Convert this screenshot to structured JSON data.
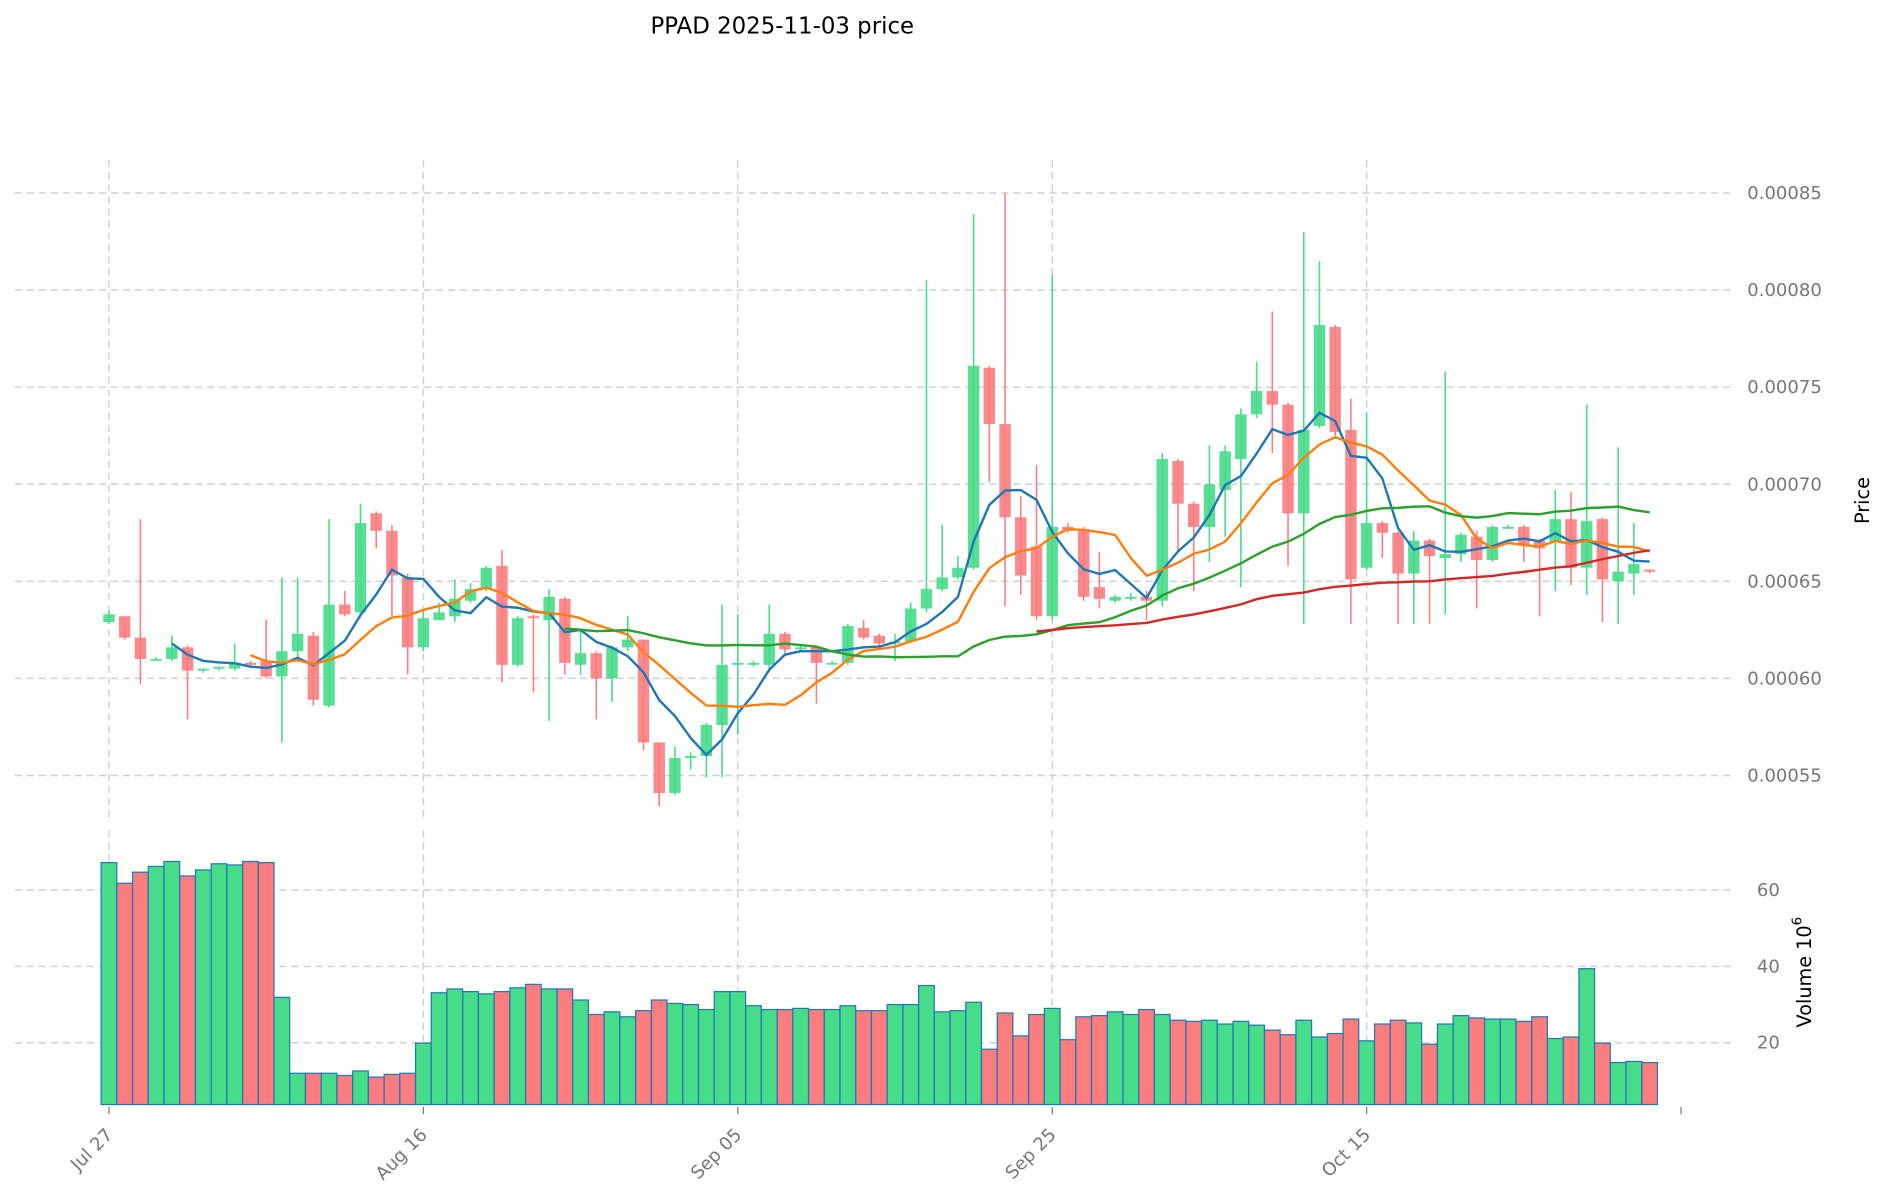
{
  "chart_data": {
    "type": "candlestick",
    "title": "PPAD  2025-11-03  price",
    "price_ylabel": "Price",
    "volume_ylabel": "Volume",
    "volume_exponent": "6",
    "start_date": "2025-07-27",
    "x_tick_labels": [
      {
        "index": 0,
        "label": "Jul 27"
      },
      {
        "index": 20,
        "label": "Aug 16"
      },
      {
        "index": 40,
        "label": "Sep 05"
      },
      {
        "index": 60,
        "label": "Sep 25"
      },
      {
        "index": 80,
        "label": "Oct 15"
      }
    ],
    "price_ticks": [
      "0.00055",
      "0.00060",
      "0.00065",
      "0.00070",
      "0.00075",
      "0.00080",
      "0.00085"
    ],
    "volume_ticks": [
      "20",
      "40",
      "60"
    ],
    "price_ylim": [
      0.000528,
      0.000867
    ],
    "volume_ylim": [
      3.8,
      75.7
    ],
    "xlim": [
      -6,
      100
    ],
    "grid": true,
    "ma_windows": [
      5,
      10,
      30,
      60
    ],
    "colors": {
      "up": "#47dc89",
      "down": "#fb7d80",
      "volume_edge": "#1f77b4",
      "ma": [
        "#1f77b4",
        "#ff7f0e",
        "#2ca02c",
        "#d62728"
      ],
      "grid": "#d0d0d0"
    },
    "ohlc_1e6": [
      [
        629,
        635,
        628,
        633
      ],
      [
        632,
        632,
        620,
        621
      ],
      [
        621,
        682,
        597,
        610
      ],
      [
        610,
        611,
        609,
        610
      ],
      [
        610,
        622,
        609,
        616
      ],
      [
        616,
        617,
        579,
        604
      ],
      [
        604,
        605,
        603,
        605
      ],
      [
        605,
        606,
        604,
        606
      ],
      [
        605,
        618,
        604,
        608
      ],
      [
        608,
        609,
        606,
        607
      ],
      [
        609,
        630,
        600,
        601
      ],
      [
        601,
        652,
        567,
        614
      ],
      [
        614,
        652,
        611,
        623
      ],
      [
        622,
        624,
        586,
        589
      ],
      [
        586,
        682,
        585,
        638
      ],
      [
        638,
        645,
        632,
        633
      ],
      [
        634,
        690,
        632,
        680
      ],
      [
        685,
        686,
        667,
        676
      ],
      [
        676,
        679,
        632,
        653
      ],
      [
        652,
        654,
        602,
        616
      ],
      [
        616,
        636,
        614,
        631
      ],
      [
        630,
        639,
        630,
        634
      ],
      [
        632,
        651,
        629,
        641
      ],
      [
        640,
        649,
        639,
        646
      ],
      [
        646,
        658,
        645,
        657
      ],
      [
        658,
        666,
        598,
        607
      ],
      [
        607,
        632,
        606,
        631
      ],
      [
        632,
        633,
        593,
        631
      ],
      [
        630,
        646,
        578,
        642
      ],
      [
        641,
        642,
        602,
        608
      ],
      [
        607,
        625,
        602,
        613
      ],
      [
        613,
        614,
        579,
        600
      ],
      [
        600,
        617,
        588,
        616
      ],
      [
        616,
        632,
        614,
        620
      ],
      [
        620,
        620,
        563,
        567
      ],
      [
        567,
        567,
        534,
        541
      ],
      [
        541,
        565,
        540,
        559
      ],
      [
        559,
        562,
        553,
        560
      ],
      [
        560,
        577,
        549,
        576
      ],
      [
        576,
        638,
        549,
        607
      ],
      [
        607,
        633,
        571,
        608
      ],
      [
        607,
        609,
        606,
        608
      ],
      [
        607,
        638,
        605,
        623
      ],
      [
        623,
        624,
        613,
        615
      ],
      [
        615,
        617,
        614,
        616
      ],
      [
        616,
        617,
        587,
        608
      ],
      [
        608,
        609,
        607,
        608
      ],
      [
        608,
        628,
        607,
        627
      ],
      [
        626,
        630,
        620,
        621
      ],
      [
        622,
        623,
        616,
        618
      ],
      [
        618,
        623,
        609,
        619
      ],
      [
        619,
        639,
        618,
        636
      ],
      [
        636,
        805,
        634,
        646
      ],
      [
        646,
        679,
        645,
        652
      ],
      [
        652,
        663,
        651,
        657
      ],
      [
        657,
        839,
        656,
        761
      ],
      [
        760,
        761,
        701,
        731
      ],
      [
        731,
        850,
        637,
        683
      ],
      [
        683,
        694,
        643,
        653
      ],
      [
        668,
        710,
        630,
        632
      ],
      [
        632,
        808,
        630,
        678
      ],
      [
        678,
        680,
        675,
        676
      ],
      [
        677,
        678,
        640,
        642
      ],
      [
        647,
        665,
        636,
        641
      ],
      [
        640,
        643,
        639,
        642
      ],
      [
        641,
        644,
        640,
        642
      ],
      [
        642,
        645,
        630,
        640
      ],
      [
        640,
        716,
        637,
        713
      ],
      [
        712,
        713,
        665,
        690
      ],
      [
        690,
        691,
        645,
        678
      ],
      [
        678,
        720,
        660,
        700
      ],
      [
        697,
        720,
        673,
        717
      ],
      [
        713,
        739,
        647,
        736
      ],
      [
        736,
        763,
        734,
        748
      ],
      [
        748,
        789,
        716,
        741
      ],
      [
        741,
        742,
        658,
        685
      ],
      [
        685,
        830,
        628,
        728
      ],
      [
        730,
        815,
        729,
        782
      ],
      [
        781,
        782,
        725,
        727
      ],
      [
        728,
        744,
        628,
        651
      ],
      [
        657,
        737,
        656,
        680
      ],
      [
        680,
        681,
        662,
        675
      ],
      [
        675,
        676,
        628,
        654
      ],
      [
        654,
        676,
        628,
        671
      ],
      [
        671,
        672,
        628,
        663
      ],
      [
        662,
        758,
        633,
        664
      ],
      [
        664,
        675,
        660,
        674
      ],
      [
        673,
        676,
        636,
        661
      ],
      [
        661,
        679,
        660,
        678
      ],
      [
        678,
        679,
        677,
        678
      ],
      [
        678,
        679,
        660,
        669
      ],
      [
        671,
        672,
        632,
        667
      ],
      [
        670,
        697,
        645,
        682
      ],
      [
        682,
        696,
        648,
        657
      ],
      [
        657,
        741,
        643,
        681
      ],
      [
        682,
        683,
        629,
        651
      ],
      [
        650,
        719,
        628,
        655
      ],
      [
        654,
        680,
        643,
        659
      ],
      [
        656,
        656,
        654,
        655
      ]
    ],
    "volume_millions": [
      67.2,
      61.8,
      64.7,
      66.2,
      67.5,
      63.7,
      65.3,
      66.9,
      66.6,
      67.5,
      67.2,
      31.9,
      12.0,
      12.0,
      12.0,
      11.4,
      12.6,
      11.0,
      11.7,
      12.0,
      19.9,
      33.1,
      34.1,
      33.4,
      32.8,
      33.4,
      34.4,
      35.3,
      34.1,
      34.1,
      31.2,
      27.4,
      28.1,
      26.8,
      28.4,
      31.2,
      30.3,
      30.0,
      28.7,
      33.4,
      33.4,
      29.7,
      28.7,
      28.7,
      29.0,
      28.7,
      28.7,
      29.7,
      28.4,
      28.4,
      30.0,
      30.0,
      35.0,
      28.1,
      28.4,
      30.6,
      18.3,
      27.8,
      21.8,
      27.4,
      29.0,
      20.8,
      26.8,
      27.1,
      28.1,
      27.4,
      28.7,
      27.4,
      25.9,
      25.6,
      25.9,
      24.9,
      25.6,
      24.6,
      23.3,
      22.1,
      25.9,
      21.5,
      22.4,
      26.2,
      20.5,
      24.9,
      25.9,
      25.2,
      19.6,
      24.9,
      27.1,
      26.5,
      26.2,
      26.2,
      25.6,
      26.8,
      21.1,
      21.5,
      39.4,
      19.9,
      14.8,
      15.1,
      14.8
    ]
  }
}
